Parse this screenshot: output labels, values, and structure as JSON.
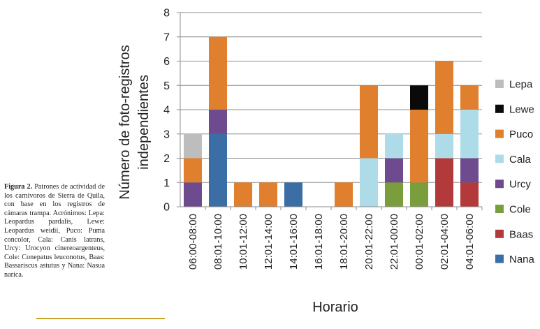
{
  "caption": {
    "label": "Figura 2.",
    "text": "Patrones de actividad de los carnívoros de Sierra de Quila, con base en los registros de cámaras trampa. Acrónimos: Lepa: Leopardus pardalis, Lewe: Leopardus weidii, Puco: Puma concolor, Cala: Canis latrans, Urcy: Urocyon cinereoargenteus, Cole: Conepatus leuconotus, Baas: Bassariscus astutus y Nana: Nasua narica."
  },
  "chart_data": {
    "type": "bar",
    "stacked": true,
    "title": "",
    "xlabel": "Horario",
    "ylabel": "Número de foto-registros independientes",
    "ylim": [
      0,
      8
    ],
    "yticks": [
      0,
      1,
      2,
      3,
      4,
      5,
      6,
      7,
      8
    ],
    "grid": true,
    "legend_position": "right",
    "categories": [
      "06:00-08:00",
      "08:01-10:00",
      "10:01-12:00",
      "12:01-14:00",
      "14:01-16:00",
      "16:01-18:00",
      "18:01-20:00",
      "20:01-22:00",
      "22:01-00:00",
      "00:01-02:00",
      "02:01-04:00",
      "04:01-06:00"
    ],
    "series": [
      {
        "name": "Nana",
        "color": "#3a6ea5",
        "values": [
          0,
          3,
          0,
          0,
          1,
          0,
          0,
          0,
          0,
          0,
          0,
          0
        ]
      },
      {
        "name": "Baas",
        "color": "#b33a3a",
        "values": [
          0,
          0,
          0,
          0,
          0,
          0,
          0,
          0,
          0,
          0,
          2,
          1
        ]
      },
      {
        "name": "Cole",
        "color": "#7a9e3b",
        "values": [
          0,
          0,
          0,
          0,
          0,
          0,
          0,
          0,
          1,
          1,
          0,
          0
        ]
      },
      {
        "name": "Urcy",
        "color": "#6e4a8e",
        "values": [
          1,
          1,
          0,
          0,
          0,
          0,
          0,
          0,
          1,
          0,
          0,
          1
        ]
      },
      {
        "name": "Cala",
        "color": "#aedbe8",
        "values": [
          0,
          0,
          0,
          0,
          0,
          0,
          0,
          2,
          1,
          0,
          1,
          2
        ]
      },
      {
        "name": "Puco",
        "color": "#e07f2d",
        "values": [
          1,
          3,
          1,
          1,
          0,
          0,
          1,
          3,
          0,
          3,
          3,
          1
        ]
      },
      {
        "name": "Lewe",
        "color": "#0a0a0a",
        "values": [
          0,
          0,
          0,
          0,
          0,
          0,
          0,
          0,
          0,
          1,
          0,
          0
        ]
      },
      {
        "name": "Lepa",
        "color": "#bdbdbd",
        "values": [
          1,
          0,
          0,
          0,
          0,
          0,
          0,
          0,
          0,
          0,
          0,
          0
        ]
      }
    ],
    "legend_order": [
      "Lepa",
      "Lewe",
      "Puco",
      "Cala",
      "Urcy",
      "Cole",
      "Baas",
      "Nana"
    ]
  }
}
